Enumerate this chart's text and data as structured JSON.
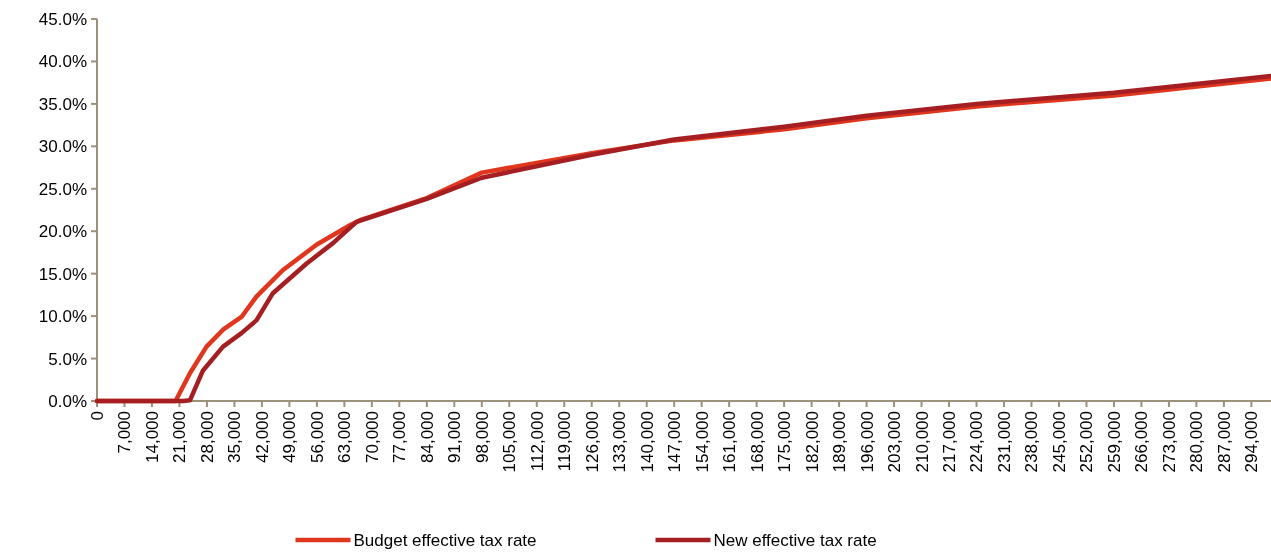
{
  "chart_data": {
    "type": "line",
    "x": [
      0,
      20000,
      23700,
      27900,
      32100,
      36800,
      40600,
      47300,
      55900,
      64400,
      67000,
      84000,
      98000,
      126000,
      147000,
      175000,
      196000,
      224000,
      259000,
      299000
    ],
    "series": [
      {
        "name": "Budget effective tax rate",
        "color": "#e0361e",
        "values": [
          0,
          0,
          3.3,
          6.4,
          8.4,
          9.9,
          12.3,
          15.4,
          18.4,
          20.7,
          21.3,
          23.9,
          26.9,
          29.2,
          30.7,
          32.0,
          33.3,
          34.7,
          36.0,
          38.0
        ]
      },
      {
        "name": "New effective tax rate",
        "color": "#a51f22",
        "x": [
          0,
          22000,
          23700,
          27000,
          32100,
          36800,
          40600,
          44800,
          53400,
          60100,
          66100,
          84000,
          98000,
          126000,
          147000,
          175000,
          196000,
          224000,
          259000,
          299000
        ],
        "values": [
          0,
          0,
          0.1,
          3.6,
          6.4,
          8.0,
          9.5,
          12.7,
          16.2,
          18.6,
          21.1,
          23.8,
          26.3,
          29.0,
          30.8,
          32.3,
          33.6,
          35.0,
          36.3,
          38.3
        ]
      }
    ],
    "xlim": [
      0,
      299000
    ],
    "xticks": [
      {
        "value": 0,
        "label": "0"
      },
      {
        "value": 7000,
        "label": "7,000"
      },
      {
        "value": 14000,
        "label": "14,000"
      },
      {
        "value": 21000,
        "label": "21,000"
      },
      {
        "value": 28000,
        "label": "28,000"
      },
      {
        "value": 35000,
        "label": "35,000"
      },
      {
        "value": 42000,
        "label": "42,000"
      },
      {
        "value": 49000,
        "label": "49,000"
      },
      {
        "value": 56000,
        "label": "56,000"
      },
      {
        "value": 63000,
        "label": "63,000"
      },
      {
        "value": 70000,
        "label": "70,000"
      },
      {
        "value": 77000,
        "label": "77,000"
      },
      {
        "value": 84000,
        "label": "84,000"
      },
      {
        "value": 91000,
        "label": "91,000"
      },
      {
        "value": 98000,
        "label": "98,000"
      },
      {
        "value": 105000,
        "label": "105,000"
      },
      {
        "value": 112000,
        "label": "112,000"
      },
      {
        "value": 119000,
        "label": "119,000"
      },
      {
        "value": 126000,
        "label": "126,000"
      },
      {
        "value": 133000,
        "label": "133,000"
      },
      {
        "value": 140000,
        "label": "140,000"
      },
      {
        "value": 147000,
        "label": "147,000"
      },
      {
        "value": 154000,
        "label": "154,000"
      },
      {
        "value": 161000,
        "label": "161,000"
      },
      {
        "value": 168000,
        "label": "168,000"
      },
      {
        "value": 175000,
        "label": "175,000"
      },
      {
        "value": 182000,
        "label": "182,000"
      },
      {
        "value": 189000,
        "label": "189,000"
      },
      {
        "value": 196000,
        "label": "196,000"
      },
      {
        "value": 203000,
        "label": "203,000"
      },
      {
        "value": 210000,
        "label": "210,000"
      },
      {
        "value": 217000,
        "label": "217,000"
      },
      {
        "value": 224000,
        "label": "224,000"
      },
      {
        "value": 231000,
        "label": "231,000"
      },
      {
        "value": 238000,
        "label": "238,000"
      },
      {
        "value": 245000,
        "label": "245,000"
      },
      {
        "value": 252000,
        "label": "252,000"
      },
      {
        "value": 259000,
        "label": "259,000"
      },
      {
        "value": 266000,
        "label": "266,000"
      },
      {
        "value": 273000,
        "label": "273,000"
      },
      {
        "value": 280000,
        "label": "280,000"
      },
      {
        "value": 287000,
        "label": "287,000"
      },
      {
        "value": 294000,
        "label": "294,000"
      }
    ],
    "ylim": [
      0,
      45
    ],
    "yticks": [
      {
        "value": 0,
        "label": "0.0%"
      },
      {
        "value": 5,
        "label": "5.0%"
      },
      {
        "value": 10,
        "label": "10.0%"
      },
      {
        "value": 15,
        "label": "15.0%"
      },
      {
        "value": 20,
        "label": "20.0%"
      },
      {
        "value": 25,
        "label": "25.0%"
      },
      {
        "value": 30,
        "label": "30.0%"
      },
      {
        "value": 35,
        "label": "35.0%"
      },
      {
        "value": 40,
        "label": "40.0%"
      },
      {
        "value": 45,
        "label": "45.0%"
      }
    ],
    "legend": "bottom",
    "marker": "none",
    "line_style": "solid"
  }
}
